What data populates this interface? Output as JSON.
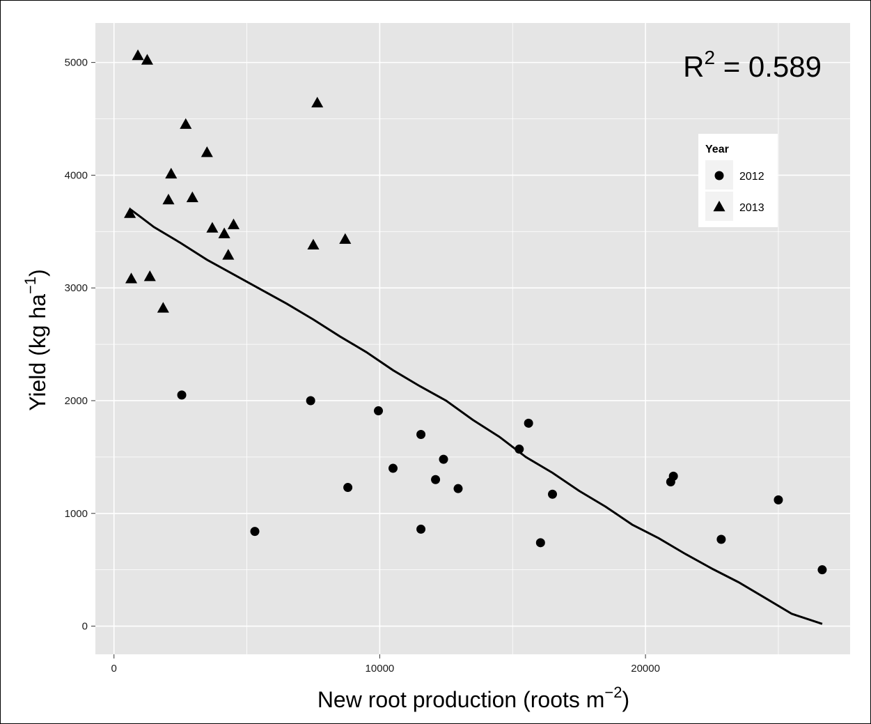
{
  "chart_data": {
    "type": "scatter",
    "xlabel": "New root production (roots m",
    "xlabel_sup": "−2",
    "xlabel_close": ")",
    "ylabel": "Yield (kg ha",
    "ylabel_sup": "−1",
    "ylabel_close": ")",
    "xlim": [
      -700,
      27700
    ],
    "ylim": [
      -250,
      5350
    ],
    "xticks": [
      0,
      10000,
      20000
    ],
    "xtick_labels": [
      "0",
      "10000",
      "20000"
    ],
    "yticks": [
      0,
      1000,
      2000,
      3000,
      4000,
      5000
    ],
    "ytick_labels": [
      "0",
      "1000",
      "2000",
      "3000",
      "4000",
      "5000"
    ],
    "grid": true,
    "panel_color": "#e5e5e5",
    "grid_color": "#ffffff",
    "mark_color": "#000000",
    "annotation": {
      "prefix": "R",
      "sup": "2",
      "rest": " = 0.589"
    },
    "legend": {
      "title": "Year",
      "placement": "top-right",
      "entries": [
        {
          "label": "2012",
          "shape": "circle"
        },
        {
          "label": "2013",
          "shape": "triangle"
        }
      ]
    },
    "series": [
      {
        "name": "2012",
        "shape": "circle",
        "points": [
          [
            2550,
            2050
          ],
          [
            5300,
            840
          ],
          [
            7400,
            2000
          ],
          [
            8800,
            1230
          ],
          [
            9950,
            1910
          ],
          [
            10500,
            1400
          ],
          [
            11550,
            1700
          ],
          [
            11550,
            860
          ],
          [
            12100,
            1300
          ],
          [
            12400,
            1480
          ],
          [
            12950,
            1220
          ],
          [
            15250,
            1570
          ],
          [
            15600,
            1800
          ],
          [
            16050,
            740
          ],
          [
            16500,
            1170
          ],
          [
            20950,
            1280
          ],
          [
            21050,
            1330
          ],
          [
            22850,
            770
          ],
          [
            25000,
            1120
          ],
          [
            26650,
            500
          ]
        ]
      },
      {
        "name": "2013",
        "shape": "triangle",
        "points": [
          [
            600,
            3660
          ],
          [
            650,
            3080
          ],
          [
            900,
            5060
          ],
          [
            1250,
            5020
          ],
          [
            1350,
            3100
          ],
          [
            1850,
            2820
          ],
          [
            2050,
            3780
          ],
          [
            2150,
            4010
          ],
          [
            2700,
            4450
          ],
          [
            2950,
            3800
          ],
          [
            3500,
            4200
          ],
          [
            3700,
            3530
          ],
          [
            4150,
            3480
          ],
          [
            4300,
            3290
          ],
          [
            4500,
            3560
          ],
          [
            7500,
            3380
          ],
          [
            7650,
            4640
          ],
          [
            8700,
            3430
          ]
        ]
      }
    ],
    "fit_line": {
      "points": [
        [
          600,
          3700
        ],
        [
          1000,
          3630
        ],
        [
          1500,
          3540
        ],
        [
          2500,
          3400
        ],
        [
          3500,
          3250
        ],
        [
          4500,
          3120
        ],
        [
          5500,
          2990
        ],
        [
          6500,
          2860
        ],
        [
          7500,
          2720
        ],
        [
          8500,
          2570
        ],
        [
          9500,
          2430
        ],
        [
          10500,
          2270
        ],
        [
          11500,
          2130
        ],
        [
          12500,
          2000
        ],
        [
          13500,
          1830
        ],
        [
          14500,
          1680
        ],
        [
          15500,
          1500
        ],
        [
          16500,
          1360
        ],
        [
          17500,
          1200
        ],
        [
          18500,
          1060
        ],
        [
          19500,
          900
        ],
        [
          20500,
          780
        ],
        [
          21500,
          640
        ],
        [
          22500,
          510
        ],
        [
          23500,
          390
        ],
        [
          24500,
          250
        ],
        [
          25500,
          110
        ],
        [
          26650,
          20
        ]
      ]
    }
  }
}
